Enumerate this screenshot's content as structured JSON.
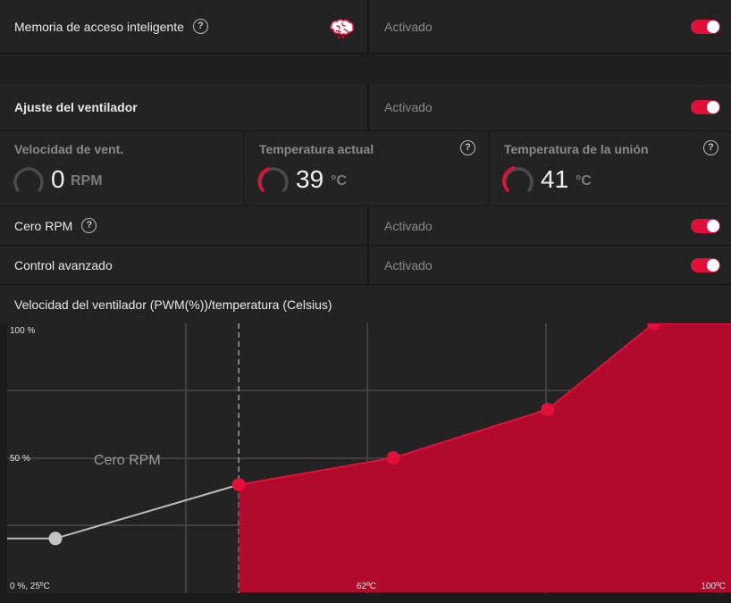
{
  "smart_access_memory": {
    "label": "Memoria de acceso inteligente",
    "help_glyph": "?",
    "icon": "brain-icon",
    "status": "Activado",
    "enabled": true
  },
  "fan_tuning": {
    "label": "Ajuste del ventilador",
    "status": "Activado",
    "enabled": true
  },
  "metrics": {
    "fan_speed": {
      "label": "Velocidad de vent.",
      "value": "0",
      "unit": "RPM"
    },
    "current_temp": {
      "label": "Temperatura actual",
      "value": "39",
      "unit": "°C",
      "help_glyph": "?"
    },
    "junction_temp": {
      "label": "Temperatura de la unión",
      "value": "41",
      "unit": "°C",
      "help_glyph": "?"
    }
  },
  "zero_rpm": {
    "label": "Cero RPM",
    "help_glyph": "?",
    "status": "Activado",
    "enabled": true
  },
  "advanced_control": {
    "label": "Control avanzado",
    "status": "Activado",
    "enabled": true
  },
  "fan_curve": {
    "title": "Velocidad del ventilador (PWM(%))/temperatura (Celsius)",
    "zero_rpm_region_label": "Cero RPM",
    "y_top_label": "100 %",
    "y_mid_label": "50 %",
    "origin_label": "0 %, 25ºC",
    "x_mid_label": "62ºC",
    "x_max_label": "100ºC"
  },
  "chart_data": {
    "type": "area",
    "title": "Velocidad del ventilador (PWM(%))/temperatura (Celsius)",
    "xlabel": "",
    "ylabel": "",
    "xlim": [
      25,
      100
    ],
    "ylim": [
      0,
      100
    ],
    "zero_rpm_threshold_c": 49,
    "series": [
      {
        "x": [
          30,
          49,
          65,
          81,
          92
        ],
        "y": [
          20,
          40,
          50,
          68,
          100
        ]
      }
    ]
  },
  "colors": {
    "accent": "#e0103a",
    "fill": "#b20a2c",
    "panel": "#232323",
    "background": "#1b1b1b"
  }
}
